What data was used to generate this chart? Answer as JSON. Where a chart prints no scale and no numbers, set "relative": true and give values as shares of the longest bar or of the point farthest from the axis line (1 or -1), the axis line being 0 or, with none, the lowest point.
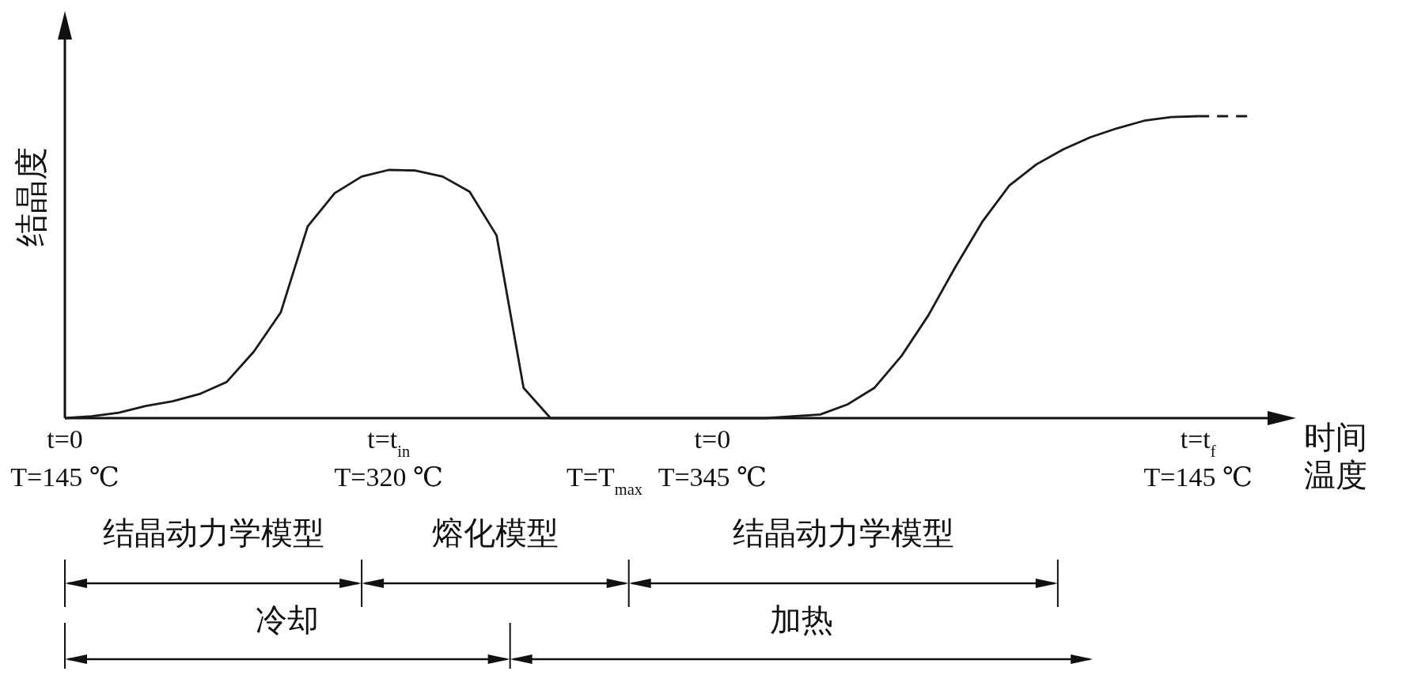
{
  "chart_data": {
    "type": "line",
    "relative": true,
    "ylabel": "结晶度",
    "xlabel": "时间",
    "categories": [
      "t=0\nT=145 ℃",
      null,
      null,
      null,
      null,
      null,
      null,
      null,
      null,
      null,
      null,
      null,
      "t=t$_{in}$\nT=320 ℃",
      null,
      null,
      null,
      null,
      null,
      null,
      null,
      "\nT=T$_{max}$",
      null,
      null,
      null,
      "t=0\nT=345 ℃",
      null,
      null,
      null,
      null,
      null,
      null,
      null,
      null,
      null,
      null,
      null,
      null,
      null,
      null,
      null,
      null,
      null,
      "t=t$_{f}$\nT=145 ℃",
      null,
      null
    ],
    "series": [
      {
        "color": "#1a1a1a",
        "line_style": "solid",
        "values": [
          0,
          0.006,
          0.018,
          0.04,
          0.056,
          0.08,
          0.12,
          0.22,
          0.35,
          0.635,
          0.745,
          0.8,
          0.822,
          0.82,
          0.8,
          0.75,
          0.605,
          0.1,
          0,
          0,
          0,
          0,
          0,
          0,
          0,
          0,
          0,
          0.006,
          0.012,
          0.045,
          0.1,
          0.205,
          0.34,
          0.5,
          0.65,
          0.77,
          0.84,
          0.89,
          0.93,
          0.96,
          0.985,
          0.997,
          1,
          null,
          null
        ]
      },
      {
        "color": "#1a1a1a",
        "line_style": "dashed",
        "values": [
          null,
          null,
          null,
          null,
          null,
          null,
          null,
          null,
          null,
          null,
          null,
          null,
          null,
          null,
          null,
          null,
          null,
          null,
          null,
          null,
          null,
          null,
          null,
          null,
          null,
          null,
          null,
          null,
          null,
          null,
          null,
          null,
          null,
          null,
          null,
          null,
          null,
          null,
          null,
          null,
          null,
          null,
          1,
          1,
          1
        ]
      }
    ],
    "annotations": [
      "结晶动力学模型",
      "熔化模型",
      "结晶动力学模型",
      "冷却",
      "加热",
      "温度"
    ]
  }
}
